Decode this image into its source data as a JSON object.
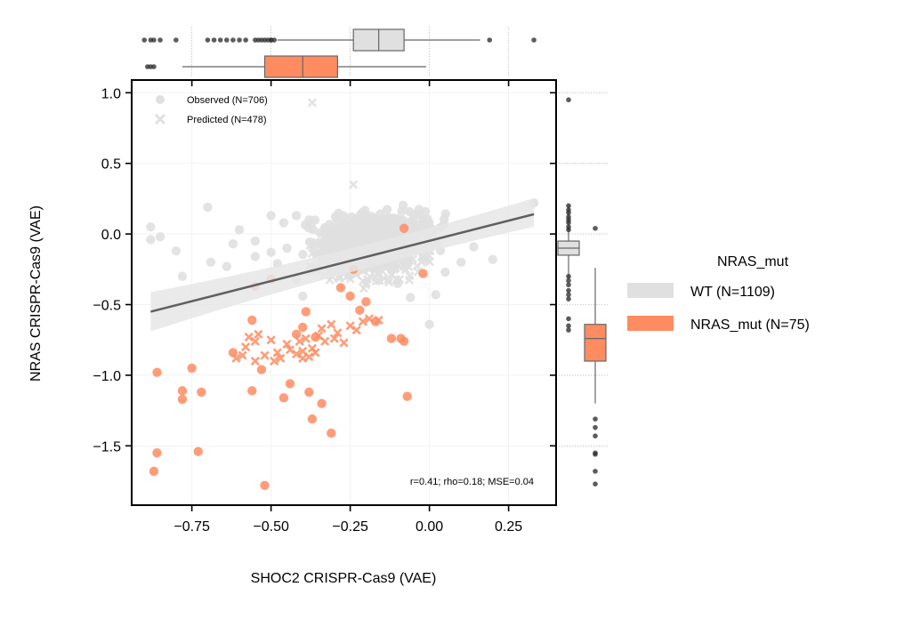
{
  "chart_data": {
    "type": "scatter",
    "xlabel": "SHOC2 CRISPR-Cas9 (VAE)",
    "ylabel": "NRAS CRISPR-Cas9 (VAE)",
    "xlim": [
      -0.94,
      0.4
    ],
    "ylim": [
      -1.92,
      1.09
    ],
    "x_ticks": [
      "−0.75",
      "−0.50",
      "−0.25",
      "0.00",
      "0.25"
    ],
    "x_tick_values": [
      -0.75,
      -0.5,
      -0.25,
      0.0,
      0.25
    ],
    "y_ticks": [
      "1.0",
      "0.5",
      "0.0",
      "−0.5",
      "−1.0",
      "−1.5"
    ],
    "y_tick_values": [
      1.0,
      0.5,
      0.0,
      -0.5,
      -1.0,
      -1.5
    ],
    "annotation": "r=0.41; rho=0.18; MSE=0.04",
    "marker_legend": [
      {
        "label": "Observed (N=706)",
        "marker": "circle"
      },
      {
        "label": "Predicted (N=478)",
        "marker": "x"
      }
    ],
    "hue_legend": {
      "title": "NRAS_mut",
      "entries": [
        {
          "label": "WT (N=1109)",
          "color": "#e0e0e0"
        },
        {
          "label": "NRAS_mut (N=75)",
          "color": "#ff8c61"
        }
      ]
    },
    "regression_line": {
      "x": [
        -0.88,
        0.33
      ],
      "y": [
        -0.55,
        0.14
      ],
      "color": "#606060",
      "band_color": "#e6e6e6"
    },
    "series": [
      {
        "group": "WT",
        "marker": "circle",
        "color": "#e0e0e0",
        "points": [
          [
            -0.88,
            0.05
          ],
          [
            -0.88,
            -0.04
          ],
          [
            -0.85,
            -0.02
          ],
          [
            -0.8,
            -0.12
          ],
          [
            -0.78,
            -0.3
          ],
          [
            -0.69,
            -0.2
          ],
          [
            -0.7,
            0.19
          ],
          [
            -0.64,
            -0.23
          ],
          [
            -0.62,
            -0.07
          ],
          [
            -0.6,
            0.03
          ],
          [
            -0.55,
            -0.16
          ],
          [
            -0.55,
            -0.05
          ],
          [
            -0.5,
            -0.13
          ],
          [
            -0.5,
            0.13
          ],
          [
            -0.48,
            -0.21
          ],
          [
            -0.46,
            0.08
          ],
          [
            -0.45,
            -0.1
          ],
          [
            -0.42,
            0.13
          ],
          [
            -0.42,
            -0.32
          ],
          [
            -0.4,
            -0.44
          ],
          [
            -0.38,
            0.1
          ],
          [
            -0.35,
            -0.25
          ],
          [
            -0.3,
            -0.2
          ],
          [
            -0.1,
            -0.35
          ],
          [
            0.02,
            -0.43
          ],
          [
            0.05,
            -0.27
          ],
          [
            0.1,
            -0.2
          ],
          [
            0.14,
            -0.09
          ],
          [
            0.2,
            -0.18
          ],
          [
            0.33,
            0.22
          ],
          [
            0.0,
            -0.64
          ],
          [
            -0.06,
            -0.45
          ]
        ],
        "cluster": {
          "x_range": [
            -0.45,
            0.1
          ],
          "y_range": [
            -0.3,
            0.23
          ],
          "count": 560,
          "seed": 7
        }
      },
      {
        "group": "WT",
        "marker": "x",
        "color": "#e0e0e0",
        "points": [
          [
            -0.37,
            0.93
          ],
          [
            -0.24,
            0.35
          ],
          [
            -0.05,
            0.1
          ],
          [
            -0.02,
            -0.06
          ]
        ],
        "cluster": {
          "x_range": [
            -0.45,
            0.08
          ],
          "y_range": [
            -0.42,
            0.12
          ],
          "count": 330,
          "seed": 19
        }
      },
      {
        "group": "NRAS_mut",
        "marker": "circle",
        "color": "#ff8c61",
        "points": [
          [
            -0.87,
            -1.68
          ],
          [
            -0.86,
            -1.55
          ],
          [
            -0.86,
            -0.98
          ],
          [
            -0.78,
            -1.11
          ],
          [
            -0.78,
            -1.17
          ],
          [
            -0.75,
            -0.95
          ],
          [
            -0.73,
            -1.54
          ],
          [
            -0.72,
            -1.12
          ],
          [
            -0.62,
            -0.84
          ],
          [
            -0.56,
            -0.61
          ],
          [
            -0.56,
            -1.11
          ],
          [
            -0.55,
            -0.37
          ],
          [
            -0.53,
            -0.96
          ],
          [
            -0.52,
            -1.78
          ],
          [
            -0.5,
            -0.32
          ],
          [
            -0.46,
            -1.16
          ],
          [
            -0.44,
            -1.06
          ],
          [
            -0.42,
            -0.71
          ],
          [
            -0.4,
            -0.66
          ],
          [
            -0.39,
            -0.55
          ],
          [
            -0.38,
            -1.12
          ],
          [
            -0.37,
            -1.31
          ],
          [
            -0.36,
            -0.73
          ],
          [
            -0.34,
            -1.2
          ],
          [
            -0.31,
            -1.41
          ],
          [
            -0.28,
            -0.38
          ],
          [
            -0.25,
            -0.44
          ],
          [
            -0.24,
            -0.25
          ],
          [
            -0.22,
            -0.54
          ],
          [
            -0.2,
            -0.48
          ],
          [
            -0.17,
            -0.62
          ],
          [
            -0.12,
            -0.74
          ],
          [
            -0.09,
            -0.74
          ],
          [
            -0.08,
            -0.76
          ],
          [
            -0.08,
            0.04
          ],
          [
            -0.07,
            -1.15
          ],
          [
            -0.02,
            -0.28
          ]
        ]
      },
      {
        "group": "NRAS_mut",
        "marker": "x",
        "color": "#ff8c61",
        "points": [
          [
            -0.61,
            -0.88
          ],
          [
            -0.59,
            -0.86
          ],
          [
            -0.58,
            -0.8
          ],
          [
            -0.57,
            -0.73
          ],
          [
            -0.55,
            -0.76
          ],
          [
            -0.55,
            -0.9
          ],
          [
            -0.54,
            -0.71
          ],
          [
            -0.52,
            -0.86
          ],
          [
            -0.5,
            -0.75
          ],
          [
            -0.49,
            -0.9
          ],
          [
            -0.48,
            -0.84
          ],
          [
            -0.47,
            -0.88
          ],
          [
            -0.45,
            -0.78
          ],
          [
            -0.44,
            -0.82
          ],
          [
            -0.42,
            -0.85
          ],
          [
            -0.41,
            -0.76
          ],
          [
            -0.4,
            -0.83
          ],
          [
            -0.39,
            -0.74
          ],
          [
            -0.38,
            -0.87
          ],
          [
            -0.37,
            -0.81
          ],
          [
            -0.36,
            -0.84
          ],
          [
            -0.35,
            -0.72
          ],
          [
            -0.34,
            -0.67
          ],
          [
            -0.33,
            -0.76
          ],
          [
            -0.31,
            -0.64
          ],
          [
            -0.3,
            -0.74
          ],
          [
            -0.29,
            -0.7
          ],
          [
            -0.27,
            -0.77
          ],
          [
            -0.25,
            -0.65
          ],
          [
            -0.23,
            -0.68
          ],
          [
            -0.21,
            -0.62
          ],
          [
            -0.19,
            -0.6
          ],
          [
            -0.16,
            -0.61
          ],
          [
            -0.4,
            -0.88
          ]
        ]
      }
    ],
    "top_boxplots": [
      {
        "group": "WT",
        "color": "#e0e0e0",
        "whisker": [
          -0.48,
          0.16
        ],
        "box": [
          -0.24,
          -0.08
        ],
        "median": -0.16,
        "outliers": [
          -0.9,
          -0.88,
          -0.87,
          -0.85,
          -0.8,
          -0.7,
          -0.68,
          -0.66,
          -0.64,
          -0.62,
          -0.6,
          -0.58,
          -0.55,
          -0.54,
          -0.53,
          -0.52,
          -0.51,
          -0.5,
          -0.5,
          -0.49,
          0.19,
          0.33
        ]
      },
      {
        "group": "NRAS_mut",
        "color": "#ff8c61",
        "whisker": [
          -0.78,
          -0.01
        ],
        "box": [
          -0.52,
          -0.29
        ],
        "median": -0.4,
        "outliers": [
          -0.89,
          -0.88,
          -0.87
        ]
      }
    ],
    "right_boxplots": [
      {
        "group": "WT",
        "color": "#e0e0e0",
        "whisker": [
          -0.32,
          0.2
        ],
        "box": [
          -0.15,
          -0.05
        ],
        "median": -0.1,
        "outliers": [
          0.95,
          0.2,
          0.17,
          0.15,
          0.12,
          0.1,
          0.08,
          0.05,
          0.03,
          -0.3,
          -0.33,
          -0.36,
          -0.4,
          -0.43,
          -0.46,
          -0.6,
          -0.65,
          -0.68
        ]
      },
      {
        "group": "NRAS_mut",
        "color": "#ff8c61",
        "whisker": [
          -1.2,
          -0.24
        ],
        "box": [
          -0.9,
          -0.64
        ],
        "median": -0.74,
        "outliers": [
          0.04,
          -1.31,
          -1.37,
          -1.43,
          -1.55,
          -1.56,
          -1.68,
          -1.77
        ]
      }
    ]
  }
}
